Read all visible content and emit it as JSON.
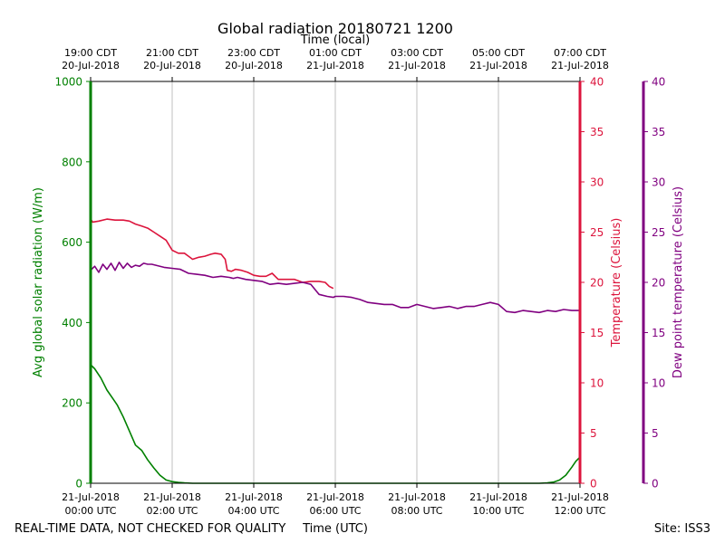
{
  "chart_data": {
    "type": "line",
    "title": "Global radiation 20180721 1200",
    "top_axis_label": "Time (local)",
    "xlabel": "Time (UTC)",
    "ylabel_left": "Avg global solar radiation (W/m)",
    "ylabel_right1": "Temperature (Celsius)",
    "ylabel_right2": "Dew point temperature (Celsius)",
    "footer_left": "REAL-TIME DATA, NOT CHECKED FOR QUALITY",
    "footer_right": "Site: ISS3",
    "x_range_hours_utc": [
      0,
      12
    ],
    "ylim_left": [
      0,
      1000
    ],
    "yticks_left": [
      "0",
      "200",
      "400",
      "600",
      "800",
      "1000"
    ],
    "ylim_temp": [
      0,
      40
    ],
    "yticks_temp": [
      "0",
      "5",
      "10",
      "15",
      "20",
      "25",
      "30",
      "35",
      "40"
    ],
    "ylim_dew": [
      0,
      40
    ],
    "yticks_dew": [
      "0",
      "5",
      "10",
      "15",
      "20",
      "25",
      "30",
      "35",
      "40"
    ],
    "grid_vertical": true,
    "colors": {
      "radiation": "#008000",
      "temperature": "#dc143c",
      "dewpoint": "#800080",
      "grid": "#b0b0b0",
      "text": "#000000"
    },
    "bottom_ticks": [
      {
        "hour": 0,
        "line1": "21-Jul-2018",
        "line2": "00:00 UTC"
      },
      {
        "hour": 2,
        "line1": "21-Jul-2018",
        "line2": "02:00 UTC"
      },
      {
        "hour": 4,
        "line1": "21-Jul-2018",
        "line2": "04:00 UTC"
      },
      {
        "hour": 6,
        "line1": "21-Jul-2018",
        "line2": "06:00 UTC"
      },
      {
        "hour": 8,
        "line1": "21-Jul-2018",
        "line2": "08:00 UTC"
      },
      {
        "hour": 10,
        "line1": "21-Jul-2018",
        "line2": "10:00 UTC"
      },
      {
        "hour": 12,
        "line1": "21-Jul-2018",
        "line2": "12:00 UTC"
      }
    ],
    "top_ticks": [
      {
        "hour": 0,
        "line1": "19:00 CDT",
        "line2": "20-Jul-2018"
      },
      {
        "hour": 2,
        "line1": "21:00 CDT",
        "line2": "20-Jul-2018"
      },
      {
        "hour": 4,
        "line1": "23:00 CDT",
        "line2": "20-Jul-2018"
      },
      {
        "hour": 6,
        "line1": "01:00 CDT",
        "line2": "21-Jul-2018"
      },
      {
        "hour": 8,
        "line1": "03:00 CDT",
        "line2": "21-Jul-2018"
      },
      {
        "hour": 10,
        "line1": "05:00 CDT",
        "line2": "21-Jul-2018"
      },
      {
        "hour": 12,
        "line1": "07:00 CDT",
        "line2": "21-Jul-2018"
      }
    ],
    "series": [
      {
        "name": "Avg global solar radiation",
        "axis": "left",
        "x": [
          0,
          0.1,
          0.25,
          0.4,
          0.55,
          0.65,
          0.8,
          0.95,
          1.1,
          1.25,
          1.4,
          1.55,
          1.7,
          1.85,
          2.0,
          2.15,
          2.3,
          2.5,
          3.0,
          4.0,
          6.0,
          8.0,
          10.0,
          11.0,
          11.2,
          11.35,
          11.5,
          11.65,
          11.8,
          11.9,
          12.0
        ],
        "y": [
          295,
          285,
          262,
          232,
          210,
          195,
          165,
          130,
          95,
          82,
          58,
          38,
          20,
          8,
          4,
          2,
          1,
          0,
          0,
          0,
          0,
          0,
          0,
          0,
          1,
          3,
          8,
          20,
          40,
          55,
          65
        ]
      },
      {
        "name": "Temperature",
        "axis": "temp",
        "x": [
          0,
          0.05,
          0.2,
          0.4,
          0.6,
          0.8,
          0.95,
          1.1,
          1.25,
          1.4,
          1.55,
          1.7,
          1.85,
          2.0,
          2.15,
          2.3,
          2.4,
          2.5,
          2.65,
          2.8,
          2.95,
          3.05,
          3.2,
          3.3,
          3.35,
          3.45,
          3.55,
          3.7,
          3.85,
          4.0,
          4.15,
          4.3,
          4.45,
          4.6,
          4.8,
          5.0,
          5.2,
          5.4,
          5.6,
          5.75,
          5.85,
          5.95
        ],
        "y": [
          26.3,
          26.0,
          26.1,
          26.3,
          26.2,
          26.2,
          26.1,
          25.8,
          25.6,
          25.4,
          25.0,
          24.6,
          24.2,
          23.2,
          22.9,
          22.9,
          22.6,
          22.3,
          22.5,
          22.6,
          22.8,
          22.9,
          22.8,
          22.3,
          21.2,
          21.1,
          21.3,
          21.2,
          21.0,
          20.7,
          20.6,
          20.6,
          20.9,
          20.3,
          20.3,
          20.3,
          20.0,
          20.1,
          20.1,
          20.0,
          19.6,
          19.4
        ]
      },
      {
        "name": "Dew point temperature",
        "axis": "dew",
        "x": [
          0,
          0.1,
          0.2,
          0.3,
          0.4,
          0.5,
          0.6,
          0.7,
          0.8,
          0.9,
          1.0,
          1.1,
          1.2,
          1.3,
          1.4,
          1.5,
          1.6,
          1.8,
          2.0,
          2.2,
          2.4,
          2.6,
          2.8,
          3.0,
          3.2,
          3.4,
          3.5,
          3.6,
          3.8,
          4.0,
          4.2,
          4.4,
          4.6,
          4.8,
          5.0,
          5.2,
          5.4,
          5.6,
          5.8,
          5.95,
          6.0,
          6.2,
          6.4,
          6.6,
          6.8,
          7.0,
          7.2,
          7.4,
          7.6,
          7.8,
          8.0,
          8.2,
          8.4,
          8.6,
          8.8,
          9.0,
          9.2,
          9.4,
          9.6,
          9.8,
          10.0,
          10.2,
          10.4,
          10.6,
          10.8,
          11.0,
          11.2,
          11.4,
          11.6,
          11.8,
          12.0
        ],
        "y": [
          21.2,
          21.6,
          21.0,
          21.8,
          21.3,
          21.9,
          21.2,
          22.0,
          21.4,
          21.9,
          21.5,
          21.7,
          21.6,
          21.9,
          21.8,
          21.8,
          21.7,
          21.5,
          21.4,
          21.3,
          20.9,
          20.8,
          20.7,
          20.5,
          20.6,
          20.5,
          20.4,
          20.5,
          20.3,
          20.2,
          20.1,
          19.8,
          19.9,
          19.8,
          19.9,
          20.0,
          19.8,
          18.8,
          18.6,
          18.5,
          18.6,
          18.6,
          18.5,
          18.3,
          18.0,
          17.9,
          17.8,
          17.8,
          17.5,
          17.5,
          17.8,
          17.6,
          17.4,
          17.5,
          17.6,
          17.4,
          17.6,
          17.6,
          17.8,
          18.0,
          17.8,
          17.1,
          17.0,
          17.2,
          17.1,
          17.0,
          17.2,
          17.1,
          17.3,
          17.2,
          17.2
        ]
      }
    ]
  }
}
